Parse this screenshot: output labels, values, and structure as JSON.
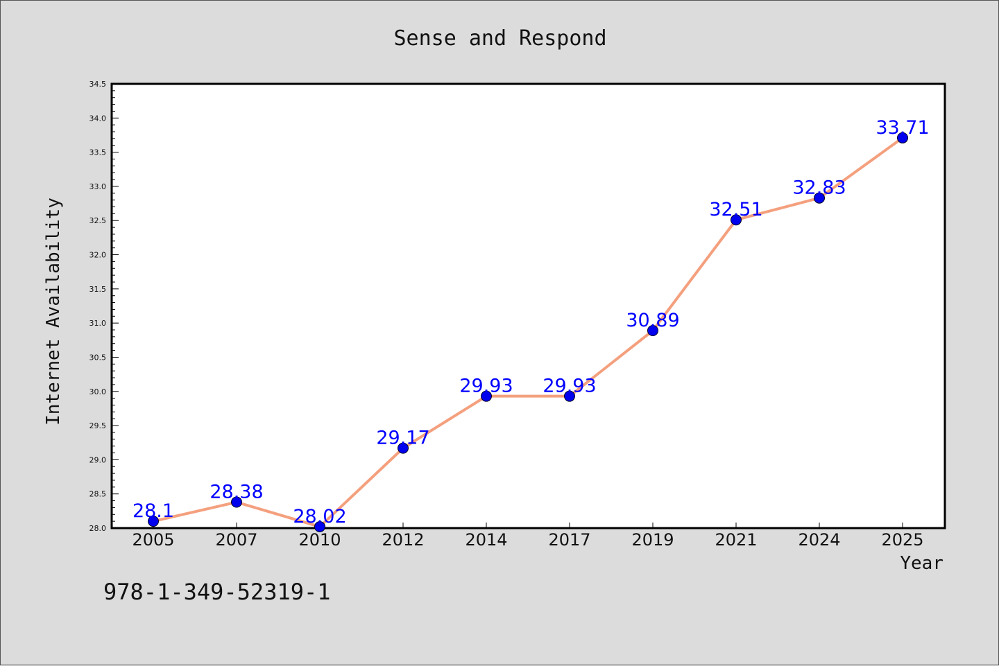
{
  "figure": {
    "isbn_text": "978-1-349-52319-1"
  },
  "chart_data": {
    "type": "line",
    "title": "Sense and Respond",
    "xlabel": "Year",
    "ylabel": "Internet Availability",
    "categories": [
      "2005",
      "2007",
      "2010",
      "2012",
      "2014",
      "2017",
      "2019",
      "2021",
      "2024",
      "2025"
    ],
    "series": [
      {
        "values": [
          28.1,
          28.38,
          28.02,
          29.17,
          29.93,
          29.93,
          30.89,
          32.51,
          32.83,
          33.71
        ],
        "labels": [
          "28.1",
          "28.38",
          "28.02",
          "29.17",
          "29.93",
          "29.93",
          "30.89",
          "32.51",
          "32.83",
          "33.71"
        ],
        "line_color": "#f4a07e",
        "marker_color": "#0000ee"
      }
    ],
    "ylim": [
      28.0,
      34.5
    ],
    "yticks": [
      "28.0",
      "28.5",
      "29.0",
      "29.5",
      "30.0",
      "30.5",
      "31.0",
      "31.5",
      "32.0",
      "32.5",
      "33.0",
      "33.5",
      "34.0",
      "34.5"
    ],
    "grid": false,
    "legend": "none",
    "plot_background": "#ffffff",
    "figure_background": "#dcdcdc"
  }
}
